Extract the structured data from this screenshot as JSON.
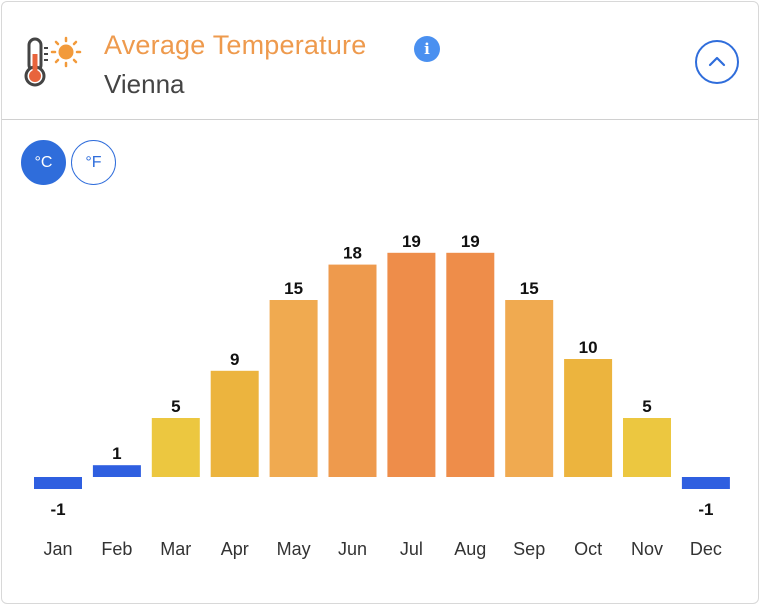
{
  "header": {
    "title": "Average Temperature",
    "city": "Vienna",
    "info_label": "i"
  },
  "units": {
    "celsius": "°C",
    "fahrenheit": "°F",
    "selected": "celsius"
  },
  "colors": {
    "cold": "#2f5fe0",
    "mild": "#ecc740",
    "warm": "#ecb43e",
    "hot": "#f0aa50",
    "hotter": "#ee9a4d",
    "hottest": "#ee8d4a",
    "accent": "#2f6ddb"
  },
  "chart_data": {
    "type": "bar",
    "title": "Average Temperature",
    "subtitle": "Vienna",
    "unit": "°C",
    "categories": [
      "Jan",
      "Feb",
      "Mar",
      "Apr",
      "May",
      "Jun",
      "Jul",
      "Aug",
      "Sep",
      "Oct",
      "Nov",
      "Dec"
    ],
    "values": [
      -1,
      1,
      5,
      9,
      15,
      18,
      19,
      19,
      15,
      10,
      5,
      -1
    ],
    "ylim": [
      -1,
      19
    ],
    "xlabel": "",
    "ylabel": "",
    "grid": false
  }
}
